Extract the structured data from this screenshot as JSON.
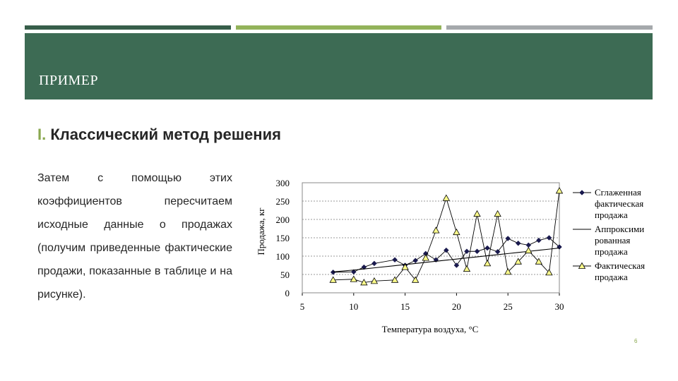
{
  "slide": {
    "title": "ПРИМЕР",
    "heading_number": "I.",
    "heading_text": "Классический метод решения",
    "body": "Затем с помощью этих коэффициентов пересчитаем исходные данные о продажах (получим приведенные фактические продажи, показанные в таблице и на рисунке).",
    "page_number": "6"
  },
  "colors": {
    "banner": "#3d6b54",
    "accent": "#8aa84f",
    "stripe_gray": "#a5a9ac"
  },
  "chart_data": {
    "type": "line",
    "xlabel": "Температура воздуха, °C",
    "ylabel": "Продажа, кг",
    "xlim": [
      5,
      30
    ],
    "ylim": [
      0,
      300
    ],
    "xticks": [
      "5",
      "10",
      "15",
      "20",
      "25",
      "30"
    ],
    "yticks": [
      "0",
      "50",
      "100",
      "150",
      "200",
      "250",
      "300"
    ],
    "grid": "horizontal dashed",
    "legend_position": "right",
    "x": [
      8,
      10,
      11,
      12,
      14,
      15,
      16,
      17,
      18,
      19,
      20,
      21,
      22,
      23,
      24,
      25,
      26,
      27,
      28,
      29,
      30
    ],
    "series": [
      {
        "name": "Сглаженная фактическая продажа",
        "marker": "diamond",
        "values": [
          56,
          57,
          70,
          80,
          90,
          75,
          88,
          107,
          90,
          116,
          75,
          113,
          113,
          122,
          112,
          148,
          135,
          130,
          143,
          150,
          125
        ]
      },
      {
        "name": "Аппроксими рованная продажа",
        "marker": "none",
        "values": [
          57,
          62,
          65,
          68,
          74,
          77,
          80,
          83,
          86,
          89,
          92,
          95,
          98,
          101,
          104,
          107,
          110,
          113,
          116,
          119,
          122
        ]
      },
      {
        "name": "Фактическая продажа",
        "marker": "triangle",
        "values": [
          35,
          37,
          28,
          32,
          35,
          70,
          35,
          95,
          170,
          258,
          165,
          65,
          215,
          80,
          215,
          57,
          85,
          115,
          85,
          55,
          278
        ]
      }
    ]
  }
}
